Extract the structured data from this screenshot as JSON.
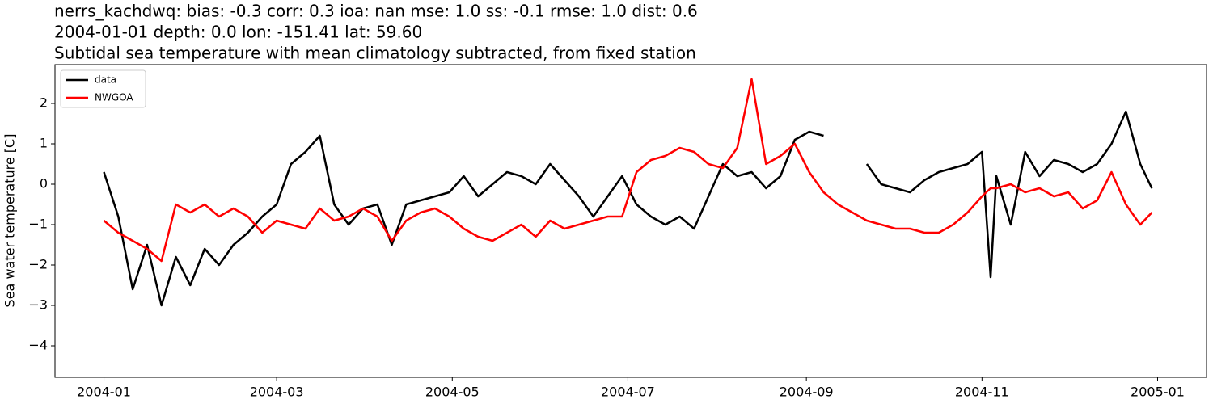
{
  "chart_data": {
    "type": "line",
    "title": [
      "nerrs_kachdwq: bias: -0.3  corr: 0.3  ioa: nan  mse: 1.0  ss: -0.1  rmse: 1.0  dist: 0.6",
      "2004-01-01 depth: 0.0 lon: -151.41 lat: 59.60",
      "Subtidal sea temperature with mean climatology subtracted, from fixed station"
    ],
    "y_label": "Sea water temperature [C]",
    "x": [
      0,
      5,
      10,
      15,
      20,
      25,
      30,
      35,
      40,
      45,
      50,
      55,
      60,
      65,
      70,
      75,
      80,
      85,
      90,
      95,
      100,
      105,
      110,
      115,
      120,
      125,
      130,
      135,
      140,
      145,
      150,
      155,
      160,
      165,
      170,
      175,
      180,
      185,
      190,
      195,
      200,
      205,
      210,
      215,
      220,
      225,
      230,
      235,
      240,
      245,
      250,
      255,
      260,
      265,
      270,
      275,
      280,
      285,
      290,
      295,
      300,
      305,
      308,
      310,
      315,
      320,
      325,
      330,
      335,
      340,
      345,
      350,
      355,
      360,
      364
    ],
    "series": [
      {
        "name": "data",
        "color": "#000000",
        "values": [
          0.3,
          -0.8,
          -2.6,
          -1.5,
          -3.0,
          -1.8,
          -2.5,
          -1.6,
          -2.0,
          -1.5,
          -1.2,
          -0.8,
          -0.5,
          0.5,
          0.8,
          1.2,
          -0.5,
          -1.0,
          -0.6,
          -0.5,
          -1.5,
          -0.5,
          -0.4,
          -0.3,
          -0.2,
          0.2,
          -0.3,
          0.0,
          0.3,
          0.2,
          0.0,
          0.5,
          0.1,
          -0.3,
          -0.8,
          -0.3,
          0.2,
          -0.5,
          -0.8,
          -1.0,
          -0.8,
          -1.1,
          -0.3,
          0.5,
          0.2,
          0.3,
          -0.1,
          0.2,
          1.1,
          1.3,
          1.2,
          null,
          null,
          0.5,
          0.0,
          -0.1,
          -0.2,
          0.1,
          0.3,
          0.4,
          0.5,
          0.8,
          -2.3,
          0.2,
          -1.0,
          0.8,
          0.2,
          0.6,
          0.5,
          0.3,
          0.5,
          1.0,
          1.8,
          0.5,
          -0.1
        ]
      },
      {
        "name": "NWGOA",
        "color": "#ff0000",
        "values": [
          -0.9,
          -1.2,
          -1.4,
          -1.6,
          -1.9,
          -0.5,
          -0.7,
          -0.5,
          -0.8,
          -0.6,
          -0.8,
          -1.2,
          -0.9,
          -1.0,
          -1.1,
          -0.6,
          -0.9,
          -0.8,
          -0.6,
          -0.8,
          -1.4,
          -0.9,
          -0.7,
          -0.6,
          -0.8,
          -1.1,
          -1.3,
          -1.4,
          -1.2,
          -1.0,
          -1.3,
          -0.9,
          -1.1,
          -1.0,
          -0.9,
          -0.8,
          -0.8,
          0.3,
          0.6,
          0.7,
          0.9,
          0.8,
          0.5,
          0.4,
          0.9,
          2.6,
          0.5,
          0.7,
          1.0,
          0.3,
          -0.2,
          -0.5,
          -0.7,
          -0.9,
          -1.0,
          -1.1,
          -1.1,
          -1.2,
          -1.2,
          -1.0,
          -0.7,
          -0.3,
          -0.1,
          -0.1,
          0.0,
          -0.2,
          -0.1,
          -0.3,
          -0.2,
          -0.6,
          -0.4,
          0.3,
          -0.5,
          -1.0,
          -0.7
        ]
      }
    ],
    "xlim": [
      -17,
      383
    ],
    "xticks": [
      {
        "value": 0,
        "label": "2004-01"
      },
      {
        "value": 60,
        "label": "2004-03"
      },
      {
        "value": 121,
        "label": "2004-05"
      },
      {
        "value": 182,
        "label": "2004-07"
      },
      {
        "value": 244,
        "label": "2004-09"
      },
      {
        "value": 305,
        "label": "2004-11"
      },
      {
        "value": 366,
        "label": "2005-01"
      }
    ],
    "ylim": [
      -4.78,
      2.96
    ],
    "yticks": [
      {
        "value": -4,
        "label": "−4"
      },
      {
        "value": -3,
        "label": "−3"
      },
      {
        "value": -2,
        "label": "−2"
      },
      {
        "value": -1,
        "label": "−1"
      },
      0,
      1,
      2
    ],
    "legend": "upper left",
    "grid": false
  }
}
